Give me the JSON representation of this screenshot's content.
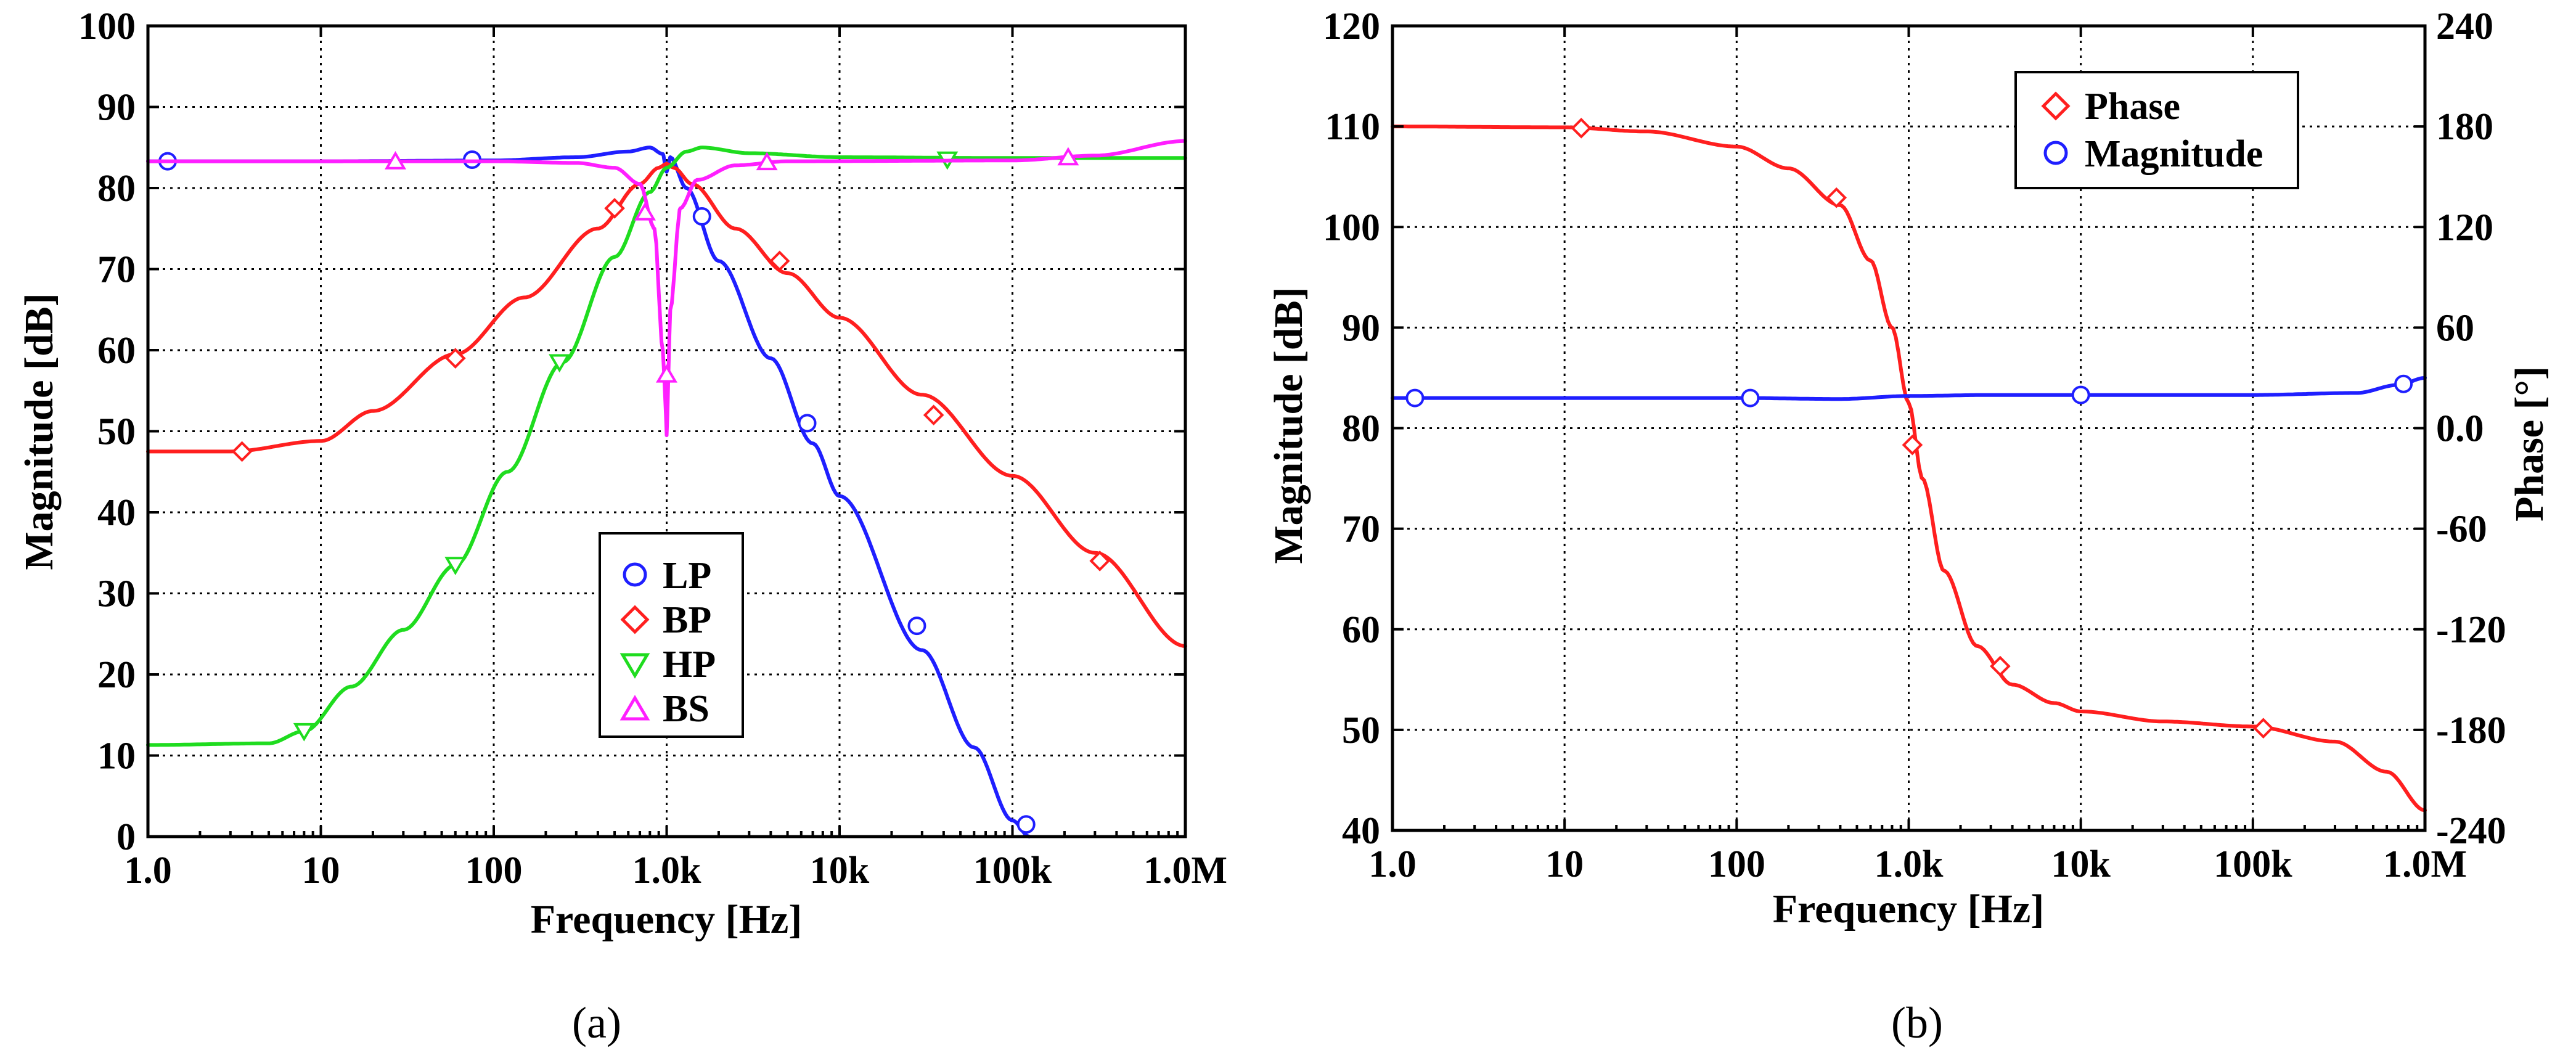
{
  "chart_data": [
    {
      "panel": "(a)",
      "type": "line",
      "x_scale": "log",
      "xlim": [
        1,
        1000000
      ],
      "ylim": [
        0,
        100
      ],
      "xlabel": "Frequency [Hz]",
      "ylabel": "Magnitude [dB]",
      "x_ticks": [
        1,
        10,
        100,
        1000,
        10000,
        100000,
        1000000
      ],
      "x_tick_labels": [
        "1.0",
        "10",
        "100",
        "1.0k",
        "10k",
        "100k",
        "1.0M"
      ],
      "y_ticks": [
        0,
        10,
        20,
        30,
        40,
        50,
        60,
        70,
        80,
        90,
        100
      ],
      "y_tick_labels": [
        "0",
        "10",
        "20",
        "30",
        "40",
        "50",
        "60",
        "70",
        "80",
        "90",
        "100"
      ],
      "grid": true,
      "legend_position": "center-right",
      "series": [
        {
          "name": "LP",
          "color": "#1f1fff",
          "marker": "circle",
          "x": [
            1,
            10,
            100,
            300,
            600,
            800,
            950,
            1000,
            1050,
            1300,
            2000,
            4000,
            7000,
            10000,
            30000,
            60000,
            100000,
            125000
          ],
          "y": [
            83.3,
            83.3,
            83.4,
            83.8,
            84.5,
            85,
            84.2,
            82,
            83.8,
            80,
            71,
            59,
            48.5,
            42,
            23,
            11,
            2,
            0
          ],
          "marker_x": [
            1.3,
            75,
            1600,
            6500,
            28000,
            120000
          ],
          "marker_y": [
            83.3,
            83.5,
            76.5,
            51,
            26,
            1.5
          ]
        },
        {
          "name": "BP",
          "color": "#ff1f1f",
          "marker": "diamond",
          "x": [
            1,
            3,
            10,
            20,
            60,
            150,
            400,
            700,
            900,
            1000,
            1100,
            1400,
            2500,
            5000,
            10000,
            30000,
            100000,
            300000,
            1000000
          ],
          "y": [
            47.5,
            47.5,
            48.8,
            52.5,
            59.5,
            66.5,
            75,
            80.5,
            82.5,
            83,
            82.5,
            80.5,
            75,
            69.5,
            64,
            54.5,
            44.5,
            35,
            23.5
          ],
          "marker_x": [
            3.5,
            60,
            500,
            4500,
            35000,
            320000
          ],
          "marker_y": [
            47.5,
            59,
            77.5,
            71,
            52,
            34
          ]
        },
        {
          "name": "HP",
          "color": "#1fdc1f",
          "marker": "triangle-down",
          "x": [
            1,
            5,
            8,
            15,
            30,
            60,
            120,
            250,
            500,
            800,
            1000,
            1300,
            1600,
            3000,
            10000,
            100000,
            1000000
          ],
          "y": [
            11.3,
            11.5,
            13,
            18.5,
            25.5,
            33.5,
            45,
            58.5,
            71.5,
            79.5,
            82.5,
            84.5,
            85,
            84.3,
            83.8,
            83.7,
            83.7
          ],
          "marker_x": [
            8,
            60,
            240,
            42000
          ],
          "marker_y": [
            13,
            33.5,
            58.5,
            83.5
          ]
        },
        {
          "name": "BS",
          "color": "#ff1fff",
          "marker": "triangle-up",
          "x": [
            1,
            100,
            300,
            500,
            700,
            850,
            950,
            990,
            1000,
            1010,
            1050,
            1200,
            1500,
            2500,
            5000,
            100000,
            300000,
            1000000
          ],
          "y": [
            83.3,
            83.3,
            83.1,
            82.5,
            80.5,
            75,
            60,
            52,
            49.5,
            52,
            65,
            77.5,
            81,
            82.8,
            83.3,
            83.4,
            84,
            85.8
          ],
          "marker_x": [
            27,
            750,
            1000,
            3800,
            210000
          ],
          "marker_y": [
            83.3,
            77,
            57,
            83.2,
            83.8
          ]
        }
      ]
    },
    {
      "panel": "(b)",
      "type": "line",
      "x_scale": "log",
      "xlim": [
        1,
        1000000
      ],
      "ylim": [
        40,
        120
      ],
      "y2lim": [
        -240,
        240
      ],
      "xlabel": "Frequency [Hz]",
      "ylabel": "Magnitude [dB]",
      "y2label": "Phase [°]",
      "x_ticks": [
        1,
        10,
        100,
        1000,
        10000,
        100000,
        1000000
      ],
      "x_tick_labels": [
        "1.0",
        "10",
        "100",
        "1.0k",
        "10k",
        "100k",
        "1.0M"
      ],
      "y_ticks": [
        40,
        50,
        60,
        70,
        80,
        90,
        100,
        110,
        120
      ],
      "y_tick_labels": [
        "40",
        "50",
        "60",
        "70",
        "80",
        "90",
        "100",
        "110",
        "120"
      ],
      "y2_ticks": [
        -240,
        -180,
        -120,
        -60,
        0,
        60,
        120,
        180,
        240
      ],
      "y2_tick_labels": [
        "-240",
        "-180",
        "-120",
        "-60",
        "0.0",
        "60",
        "120",
        "180",
        "240"
      ],
      "grid": true,
      "legend_position": "top-center",
      "series": [
        {
          "name": "Phase",
          "color": "#ff1f1f",
          "marker": "diamond",
          "axis": "right",
          "x": [
            1,
            10,
            30,
            100,
            200,
            400,
            600,
            800,
            1000,
            1200,
            1600,
            2500,
            4000,
            7000,
            10000,
            30000,
            100000,
            300000,
            600000,
            1000000
          ],
          "y": [
            180,
            179.5,
            177,
            168,
            155,
            133,
            100,
            60,
            15,
            -30,
            -85,
            -130,
            -153,
            -164,
            -169,
            -175,
            -178,
            -187,
            -205,
            -228
          ],
          "marker_x": [
            12.5,
            380,
            1050,
            3400,
            115000
          ],
          "marker_y": [
            179,
            137.5,
            -10,
            -142,
            -179
          ]
        },
        {
          "name": "Magnitude",
          "color": "#1f1fff",
          "marker": "circle",
          "axis": "left",
          "x": [
            1,
            10,
            100,
            400,
            1000,
            3000,
            10000,
            100000,
            400000,
            700000,
            1000000
          ],
          "y": [
            83,
            83,
            83,
            82.9,
            83.2,
            83.3,
            83.3,
            83.3,
            83.5,
            84.3,
            85
          ],
          "marker_x": [
            1.35,
            120,
            10000,
            750000
          ],
          "marker_y": [
            83,
            83,
            83.3,
            84.4
          ]
        }
      ]
    }
  ]
}
